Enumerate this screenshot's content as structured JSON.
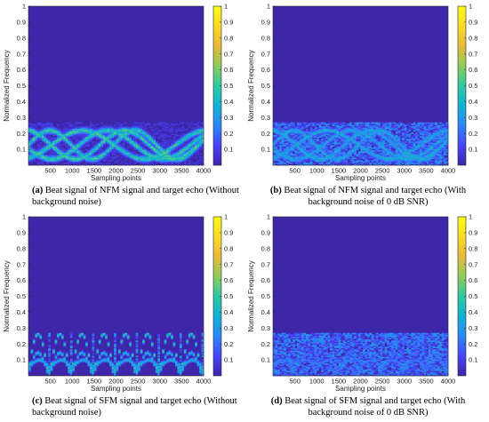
{
  "chart_data": [
    {
      "type": "heatmap",
      "id": "a",
      "caption_letter": "(a)",
      "caption_text": "Beat signal of NFM signal and target echo (Without background noise)",
      "xlabel": "Sampling points",
      "ylabel": "Normalized Frequency",
      "x_ticks": [
        500,
        1000,
        1500,
        2000,
        2500,
        3000,
        3500,
        4000
      ],
      "y_ticks": [
        0.1,
        0.2,
        0.3,
        0.4,
        0.5,
        0.6,
        0.7,
        0.8,
        0.9,
        1
      ],
      "xlim": [
        0,
        4000
      ],
      "ylim": [
        0,
        1
      ],
      "colorbar_ticks": [
        0.1,
        0.2,
        0.3,
        0.4,
        0.5,
        0.6,
        0.7,
        0.8,
        0.9,
        1
      ],
      "colorbar_range": [
        0,
        1
      ],
      "colormap": "parula",
      "energy_band": [
        0,
        0.27
      ],
      "pattern": "nfm-clean"
    },
    {
      "type": "heatmap",
      "id": "b",
      "caption_letter": "(b)",
      "caption_text": "Beat signal of NFM signal and target echo (With background noise of 0 dB SNR)",
      "xlabel": "Sampling points",
      "ylabel": "Normalized Frequency",
      "x_ticks": [
        500,
        1000,
        1500,
        2000,
        2500,
        3000,
        3500,
        4000
      ],
      "y_ticks": [
        0.1,
        0.2,
        0.3,
        0.4,
        0.5,
        0.6,
        0.7,
        0.8,
        0.9,
        1
      ],
      "xlim": [
        0,
        4000
      ],
      "ylim": [
        0,
        1
      ],
      "colorbar_ticks": [
        0.1,
        0.2,
        0.3,
        0.4,
        0.5,
        0.6,
        0.7,
        0.8,
        0.9,
        1
      ],
      "colorbar_range": [
        0,
        1
      ],
      "colormap": "parula",
      "energy_band": [
        0,
        0.27
      ],
      "pattern": "nfm-noisy"
    },
    {
      "type": "heatmap",
      "id": "c",
      "caption_letter": "(c)",
      "caption_text": "Beat signal of SFM signal and target echo (Without background noise)",
      "xlabel": "Sampling points",
      "ylabel": "Normalized Frequency",
      "x_ticks": [
        500,
        1000,
        1500,
        2000,
        2500,
        3000,
        3500,
        4000
      ],
      "y_ticks": [
        0.1,
        0.2,
        0.3,
        0.4,
        0.5,
        0.6,
        0.7,
        0.8,
        0.9,
        1
      ],
      "xlim": [
        0,
        4000
      ],
      "ylim": [
        0,
        1
      ],
      "colorbar_ticks": [
        0.1,
        0.2,
        0.3,
        0.4,
        0.5,
        0.6,
        0.7,
        0.8,
        0.9,
        1
      ],
      "colorbar_range": [
        0,
        1
      ],
      "colormap": "parula",
      "energy_band": [
        0,
        0.27
      ],
      "pattern": "sfm-clean"
    },
    {
      "type": "heatmap",
      "id": "d",
      "caption_letter": "(d)",
      "caption_text": "Beat signal of SFM signal and target echo (With background noise of 0 dB SNR)",
      "xlabel": "Sampling points",
      "ylabel": "Normalized Frequency",
      "x_ticks": [
        500,
        1000,
        1500,
        2000,
        2500,
        3000,
        3500,
        4000
      ],
      "y_ticks": [
        0.1,
        0.2,
        0.3,
        0.4,
        0.5,
        0.6,
        0.7,
        0.8,
        0.9,
        1
      ],
      "xlim": [
        0,
        4000
      ],
      "ylim": [
        0,
        1
      ],
      "colorbar_ticks": [
        0.1,
        0.2,
        0.3,
        0.4,
        0.5,
        0.6,
        0.7,
        0.8,
        0.9,
        1
      ],
      "colorbar_range": [
        0,
        1
      ],
      "colormap": "parula",
      "energy_band": [
        0,
        0.27
      ],
      "pattern": "sfm-noisy"
    }
  ],
  "colors": {
    "background_field": "#3e26a8",
    "colormap_stops": [
      "#3e26a8",
      "#4743f8",
      "#2e87f7",
      "#12b2d2",
      "#2fc8a3",
      "#8fcb5b",
      "#e7ba3c",
      "#fadb26",
      "#f9fb15"
    ]
  }
}
